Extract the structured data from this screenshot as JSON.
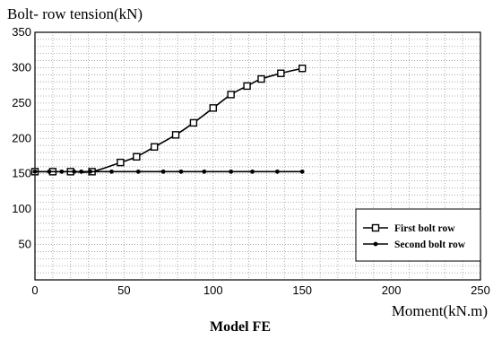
{
  "chart_data": {
    "type": "line",
    "title": "Model FE",
    "xlabel": "Moment(kN.m)",
    "ylabel": "Bolt- row tension(kN)",
    "xlim": [
      0,
      250
    ],
    "ylim": [
      0,
      350
    ],
    "x_ticks": [
      "0",
      "50",
      "100",
      "150",
      "200",
      "250"
    ],
    "y_ticks": [
      "50",
      "100",
      "150",
      "200",
      "250",
      "300",
      "350"
    ],
    "grid": true,
    "legend_position": "lower-right",
    "series": [
      {
        "name": "First bolt row",
        "marker": "square",
        "color": "#000000",
        "x": [
          0,
          10,
          20,
          32,
          48,
          57,
          67,
          79,
          89,
          100,
          110,
          119,
          127,
          138,
          150
        ],
        "y": [
          153,
          153,
          153,
          153,
          166,
          174,
          188,
          205,
          222,
          243,
          262,
          274,
          284,
          292,
          299
        ]
      },
      {
        "name": "Second bolt row",
        "marker": "dot",
        "color": "#000000",
        "x": [
          0,
          8,
          15,
          22,
          26,
          31,
          43,
          58,
          72,
          82,
          95,
          110,
          122,
          136,
          150
        ],
        "y": [
          153,
          153,
          153,
          153,
          153,
          153,
          153,
          153,
          153,
          153,
          153,
          153,
          153,
          153,
          153
        ]
      }
    ]
  }
}
